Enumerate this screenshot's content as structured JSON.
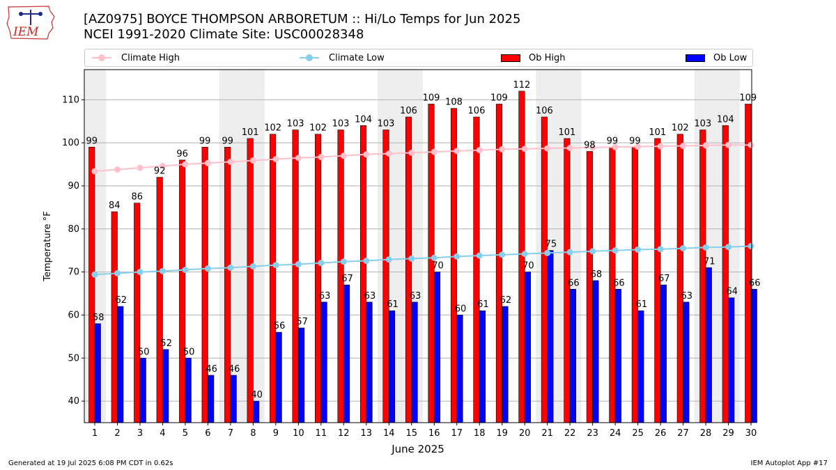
{
  "logo": {
    "text": "IEM",
    "icon": "iowa-state-outline-icon"
  },
  "title_line1": "[AZ0975] BOYCE THOMPSON ARBORETUM :: Hi/Lo Temps for Jun 2025",
  "title_line2": "NCEI 1991-2020 Climate Site: USC00028348",
  "footer": {
    "left": "Generated at 19 Jul 2025 6:08 PM CDT in 0.62s",
    "right": "IEM Autoplot App #17"
  },
  "colors": {
    "ob_high": "#ff0000",
    "ob_low": "#0000ff",
    "climate_high": "#ffc0cb",
    "climate_low": "#87ceeb",
    "weekend_shade": "#eeeeee",
    "grid": "#b0b0b0"
  },
  "chart_data": {
    "type": "bar",
    "xlabel": "June 2025",
    "ylabel": "Temperature °F",
    "ylim": [
      35,
      117
    ],
    "yticks": [
      40,
      50,
      60,
      70,
      80,
      90,
      100,
      110
    ],
    "grid": "horizontal",
    "legend_position": "top",
    "categories": [
      "1",
      "2",
      "3",
      "4",
      "5",
      "6",
      "7",
      "8",
      "9",
      "10",
      "11",
      "12",
      "13",
      "14",
      "15",
      "16",
      "17",
      "18",
      "19",
      "20",
      "21",
      "22",
      "23",
      "24",
      "25",
      "26",
      "27",
      "28",
      "29",
      "30"
    ],
    "weekend_days": [
      1,
      7,
      8,
      14,
      15,
      21,
      22,
      28,
      29
    ],
    "series": [
      {
        "name": "Ob High",
        "type": "bar",
        "values": [
          99,
          84,
          86,
          92,
          96,
          99,
          99,
          101,
          102,
          103,
          102,
          103,
          104,
          103,
          106,
          109,
          108,
          106,
          109,
          112,
          106,
          101,
          98,
          99,
          99,
          101,
          102,
          103,
          104,
          109
        ]
      },
      {
        "name": "Ob Low",
        "type": "bar",
        "values": [
          58,
          62,
          50,
          52,
          50,
          46,
          46,
          40,
          56,
          57,
          63,
          67,
          63,
          61,
          63,
          70,
          60,
          61,
          62,
          70,
          75,
          66,
          68,
          66,
          61,
          67,
          63,
          71,
          64,
          66
        ]
      },
      {
        "name": "Climate High",
        "type": "line",
        "values": [
          93.4,
          93.8,
          94.2,
          94.6,
          95.0,
          95.3,
          95.6,
          95.9,
          96.2,
          96.5,
          96.7,
          97.0,
          97.3,
          97.5,
          97.7,
          97.9,
          98.1,
          98.3,
          98.5,
          98.6,
          98.7,
          98.8,
          98.9,
          99.0,
          99.1,
          99.2,
          99.3,
          99.4,
          99.5,
          99.5
        ]
      },
      {
        "name": "Climate Low",
        "type": "line",
        "values": [
          69.4,
          69.7,
          70.0,
          70.2,
          70.5,
          70.8,
          71.0,
          71.3,
          71.6,
          71.8,
          72.1,
          72.4,
          72.6,
          72.9,
          73.1,
          73.3,
          73.6,
          73.8,
          74.0,
          74.2,
          74.4,
          74.6,
          74.8,
          75.0,
          75.2,
          75.3,
          75.5,
          75.7,
          75.8,
          76.0
        ]
      }
    ]
  }
}
